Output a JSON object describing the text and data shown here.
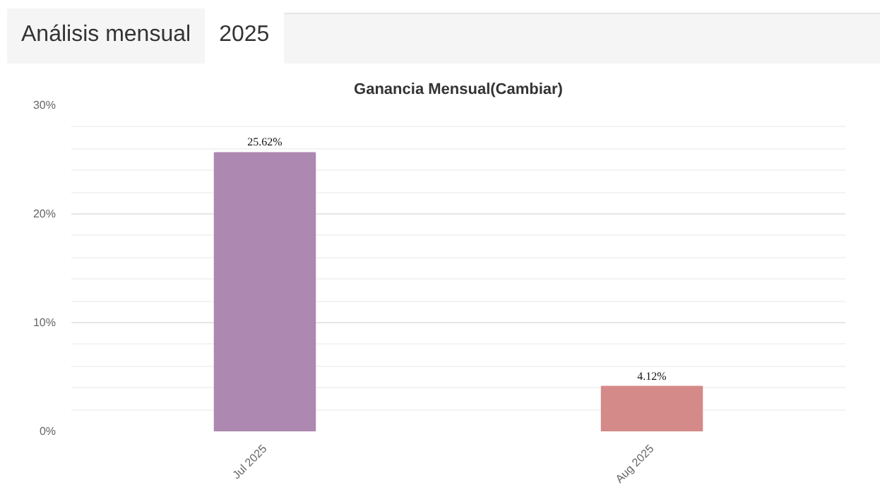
{
  "chart_data": {
    "type": "bar",
    "title": "Ganancia Mensual(Cambiar)",
    "annotations": [
      "Análisis mensual",
      "2025"
    ],
    "categories": [
      "Jul 2025",
      "Aug 2025"
    ],
    "values": [
      25.62,
      4.12
    ],
    "colors": [
      "#ad88b0",
      "#d48a88"
    ],
    "value_labels": [
      "25.62%",
      "4.12%"
    ],
    "ylim": [
      0,
      30
    ],
    "yticks": [
      {
        "value": 0,
        "label": "0%"
      },
      {
        "value": 10,
        "label": "10%"
      },
      {
        "value": 20,
        "label": "20%"
      },
      {
        "value": 30,
        "label": "30%"
      }
    ],
    "grid": "y"
  }
}
